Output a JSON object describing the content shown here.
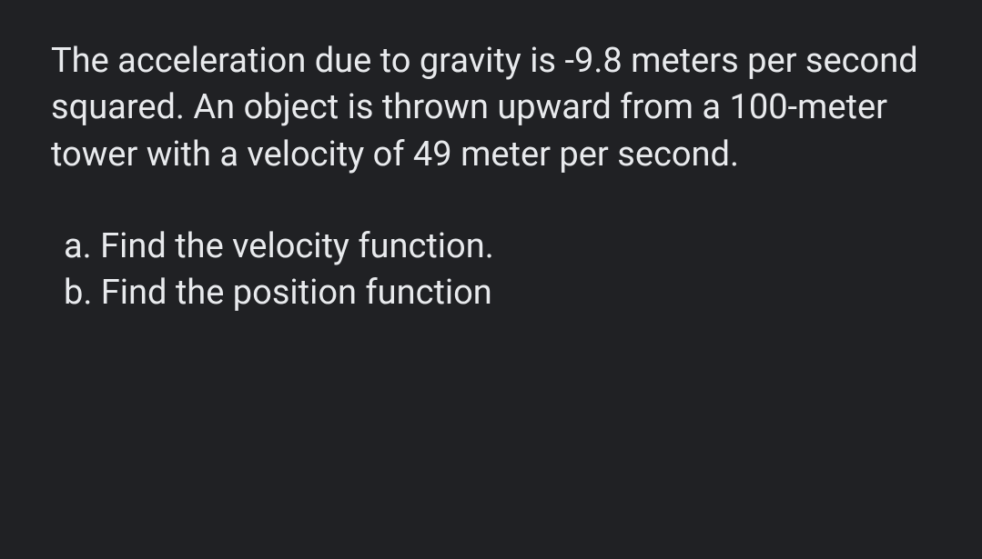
{
  "problem": {
    "statement": "The acceleration due to gravity is -9.8 meters per second squared. An object is thrown upward from a 100-meter tower with a velocity of 49 meter per second.",
    "part_a": "a. Find the velocity function.",
    "part_b": "b. Find the position function"
  },
  "style": {
    "background_color": "#202124",
    "text_color": "#e8eaed",
    "font_size": 38,
    "line_height": 1.35,
    "font_family": "Roboto, Arial, sans-serif"
  }
}
